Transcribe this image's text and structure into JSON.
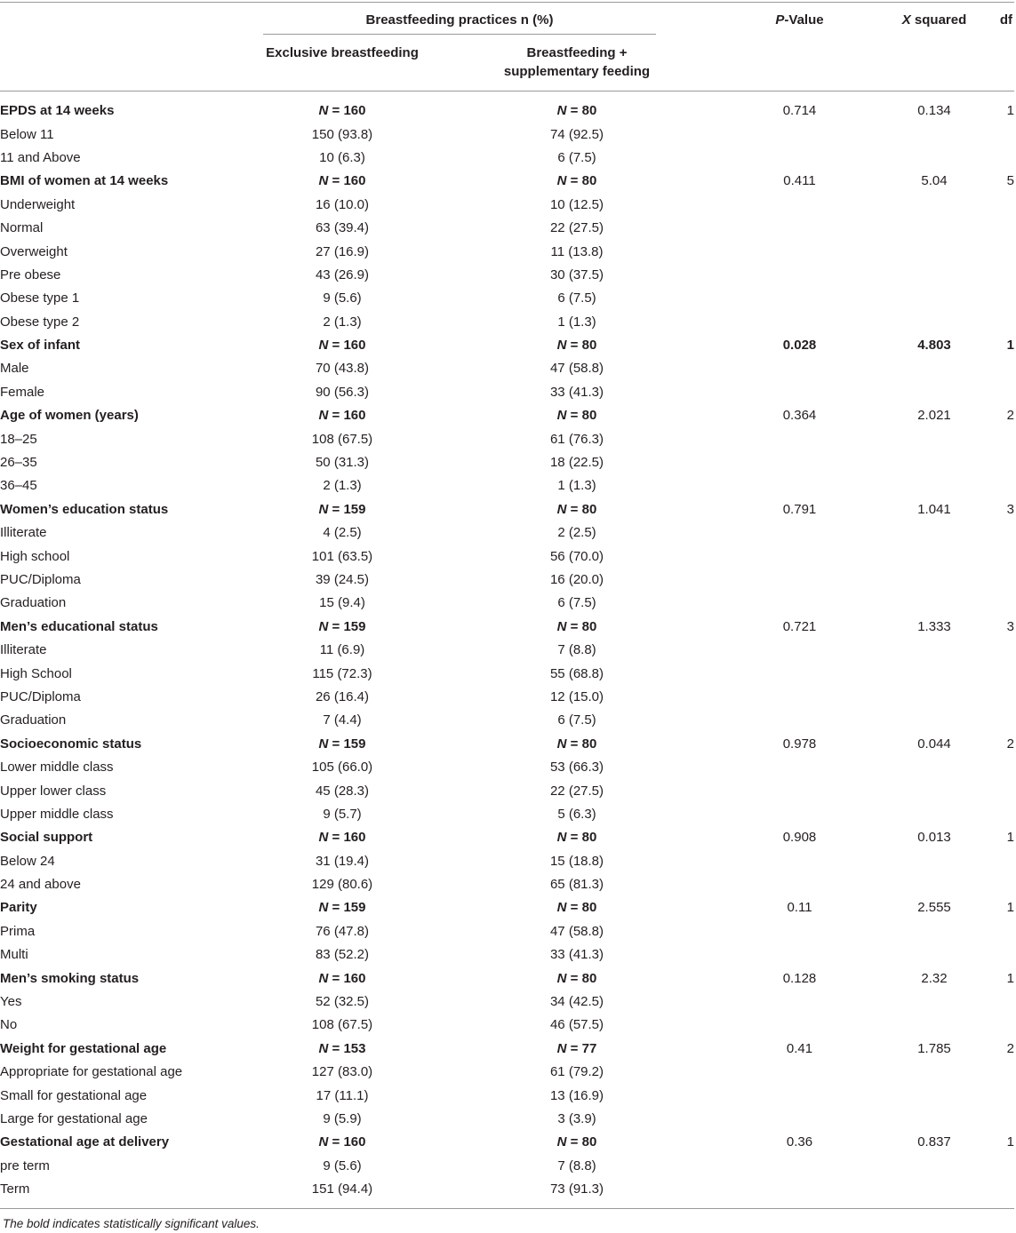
{
  "header": {
    "group_label": "Breastfeeding practices n (%)",
    "col_exclusive": "Exclusive breastfeeding",
    "col_supp_line1": "Breastfeeding +",
    "col_supp_line2": "supplementary feeding",
    "col_p_italic": "P",
    "col_p_rest": "-Value",
    "col_x_italic": "X",
    "col_x_rest": " squared",
    "col_df": "df"
  },
  "rows": [
    {
      "label": "EPDS at 14 weeks",
      "excl": "160",
      "supp": "80",
      "p": "0.714",
      "x2": "0.134",
      "df": "1",
      "group": true,
      "sig": false
    },
    {
      "label": "Below 11",
      "excl": "150 (93.8)",
      "supp": "74 (92.5)"
    },
    {
      "label": "11 and Above",
      "excl": "10 (6.3)",
      "supp": "6 (7.5)"
    },
    {
      "label": "BMI of women at 14 weeks",
      "excl": "160",
      "supp": "80",
      "p": "0.411",
      "x2": "5.04",
      "df": "5",
      "group": true,
      "sig": false
    },
    {
      "label": "Underweight",
      "excl": "16 (10.0)",
      "supp": "10 (12.5)"
    },
    {
      "label": "Normal",
      "excl": "63 (39.4)",
      "supp": "22 (27.5)"
    },
    {
      "label": "Overweight",
      "excl": "27 (16.9)",
      "supp": "11 (13.8)"
    },
    {
      "label": "Pre obese",
      "excl": "43 (26.9)",
      "supp": "30 (37.5)"
    },
    {
      "label": "Obese type 1",
      "excl": "9 (5.6)",
      "supp": "6 (7.5)"
    },
    {
      "label": "Obese type 2",
      "excl": "2 (1.3)",
      "supp": "1 (1.3)"
    },
    {
      "label": "Sex of infant",
      "excl": "160",
      "supp": "80",
      "p": "0.028",
      "x2": "4.803",
      "df": "1",
      "group": true,
      "sig": true
    },
    {
      "label": "Male",
      "excl": "70 (43.8)",
      "supp": "47 (58.8)"
    },
    {
      "label": "Female",
      "excl": "90 (56.3)",
      "supp": "33 (41.3)"
    },
    {
      "label": "Age of women (years)",
      "excl": "160",
      "supp": "80",
      "p": "0.364",
      "x2": "2.021",
      "df": "2",
      "group": true,
      "sig": false
    },
    {
      "label": "18–25",
      "excl": "108 (67.5)",
      "supp": "61 (76.3)"
    },
    {
      "label": "26–35",
      "excl": "50 (31.3)",
      "supp": "18 (22.5)"
    },
    {
      "label": "36–45",
      "excl": "2 (1.3)",
      "supp": "1 (1.3)"
    },
    {
      "label": "Women’s education status",
      "excl": "159",
      "supp": "80",
      "p": "0.791",
      "x2": "1.041",
      "df": "3",
      "group": true,
      "sig": false
    },
    {
      "label": "Illiterate",
      "excl": "4 (2.5)",
      "supp": "2 (2.5)"
    },
    {
      "label": "High school",
      "excl": "101 (63.5)",
      "supp": "56 (70.0)"
    },
    {
      "label": "PUC/Diploma",
      "excl": "39 (24.5)",
      "supp": "16 (20.0)"
    },
    {
      "label": "Graduation",
      "excl": "15 (9.4)",
      "supp": "6 (7.5)"
    },
    {
      "label": "Men’s educational status",
      "excl": "159",
      "supp": "80",
      "p": "0.721",
      "x2": "1.333",
      "df": "3",
      "group": true,
      "sig": false
    },
    {
      "label": "Illiterate",
      "excl": "11 (6.9)",
      "supp": "7 (8.8)"
    },
    {
      "label": "High School",
      "excl": "115 (72.3)",
      "supp": "55 (68.8)"
    },
    {
      "label": "PUC/Diploma",
      "excl": "26 (16.4)",
      "supp": "12 (15.0)"
    },
    {
      "label": "Graduation",
      "excl": "7 (4.4)",
      "supp": "6 (7.5)"
    },
    {
      "label": "Socioeconomic status",
      "excl": "159",
      "supp": "80",
      "p": "0.978",
      "x2": "0.044",
      "df": "2",
      "group": true,
      "sig": false
    },
    {
      "label": "Lower middle class",
      "excl": "105 (66.0)",
      "supp": "53 (66.3)"
    },
    {
      "label": "Upper lower class",
      "excl": "45 (28.3)",
      "supp": "22 (27.5)"
    },
    {
      "label": "Upper middle class",
      "excl": "9 (5.7)",
      "supp": "5 (6.3)"
    },
    {
      "label": "Social support",
      "excl": "160",
      "supp": "80",
      "p": "0.908",
      "x2": "0.013",
      "df": "1",
      "group": true,
      "sig": false
    },
    {
      "label": "Below 24",
      "excl": "31 (19.4)",
      "supp": "15 (18.8)"
    },
    {
      "label": "24 and above",
      "excl": "129 (80.6)",
      "supp": "65 (81.3)"
    },
    {
      "label": "Parity",
      "excl": "159",
      "supp": "80",
      "p": "0.11",
      "x2": "2.555",
      "df": "1",
      "group": true,
      "sig": false
    },
    {
      "label": "Prima",
      "excl": "76 (47.8)",
      "supp": "47 (58.8)"
    },
    {
      "label": "Multi",
      "excl": "83 (52.2)",
      "supp": "33 (41.3)"
    },
    {
      "label": "Men’s smoking status",
      "excl": "160",
      "supp": "80",
      "p": "0.128",
      "x2": "2.32",
      "df": "1",
      "group": true,
      "sig": false
    },
    {
      "label": "Yes",
      "excl": "52 (32.5)",
      "supp": "34 (42.5)"
    },
    {
      "label": "No",
      "excl": "108 (67.5)",
      "supp": "46 (57.5)"
    },
    {
      "label": "Weight for gestational age",
      "excl": "153",
      "supp": "77",
      "p": "0.41",
      "x2": "1.785",
      "df": "2",
      "group": true,
      "sig": false
    },
    {
      "label": "Appropriate for gestational age",
      "excl": "127 (83.0)",
      "supp": "61 (79.2)"
    },
    {
      "label": "Small for gestational age",
      "excl": "17 (11.1)",
      "supp": "13 (16.9)"
    },
    {
      "label": "Large for gestational age",
      "excl": "9 (5.9)",
      "supp": "3 (3.9)"
    },
    {
      "label": "Gestational age at delivery",
      "excl": "160",
      "supp": "80",
      "p": "0.36",
      "x2": "0.837",
      "df": "1",
      "group": true,
      "sig": false
    },
    {
      "label": "pre term",
      "excl": "9 (5.6)",
      "supp": "7 (8.8)"
    },
    {
      "label": "Term",
      "excl": "151 (94.4)",
      "supp": "73 (91.3)"
    }
  ],
  "n_prefix": "N",
  "n_equals": " = ",
  "footnote": "The bold indicates statistically significant values."
}
